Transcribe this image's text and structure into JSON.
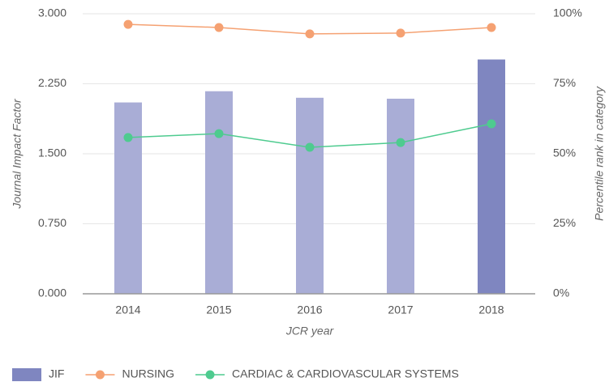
{
  "chart_data": {
    "type": "bar",
    "categories": [
      "2014",
      "2015",
      "2016",
      "2017",
      "2018"
    ],
    "xlabel": "JCR year",
    "ylabel": "Journal Impact Factor",
    "y2label": "Percentile rank in category",
    "ylim": [
      0,
      3
    ],
    "yticks": [
      {
        "value": 0,
        "label": "0.000"
      },
      {
        "value": 0.75,
        "label": "0.750"
      },
      {
        "value": 1.5,
        "label": "1.500"
      },
      {
        "value": 2.25,
        "label": "2.250"
      },
      {
        "value": 3,
        "label": "3.000"
      }
    ],
    "y2lim": [
      0,
      100
    ],
    "y2ticks": [
      {
        "value": 0,
        "label": "0%"
      },
      {
        "value": 25,
        "label": "25%"
      },
      {
        "value": 50,
        "label": "50%"
      },
      {
        "value": 75,
        "label": "75%"
      },
      {
        "value": 100,
        "label": "100%"
      }
    ],
    "grid": true,
    "legend": "bottom",
    "series": [
      {
        "name": "JIF",
        "type": "bar",
        "color": "#7f86c0",
        "bar_colors": [
          "#a9add6",
          "#a9add6",
          "#a9add6",
          "#a9add6",
          "#7f86c0"
        ],
        "values": [
          2.05,
          2.17,
          2.1,
          2.09,
          2.51
        ]
      },
      {
        "name": "NURSING",
        "type": "line",
        "axis": "y2",
        "color": "#f5a172",
        "values": [
          96.2,
          95.1,
          92.8,
          93.1,
          95.1
        ]
      },
      {
        "name": "CARDIAC & CARDIOVASCULAR SYSTEMS",
        "type": "line",
        "axis": "y2",
        "color": "#4ecb8f",
        "values": [
          55.8,
          57.2,
          52.3,
          54.0,
          60.7
        ]
      }
    ]
  }
}
